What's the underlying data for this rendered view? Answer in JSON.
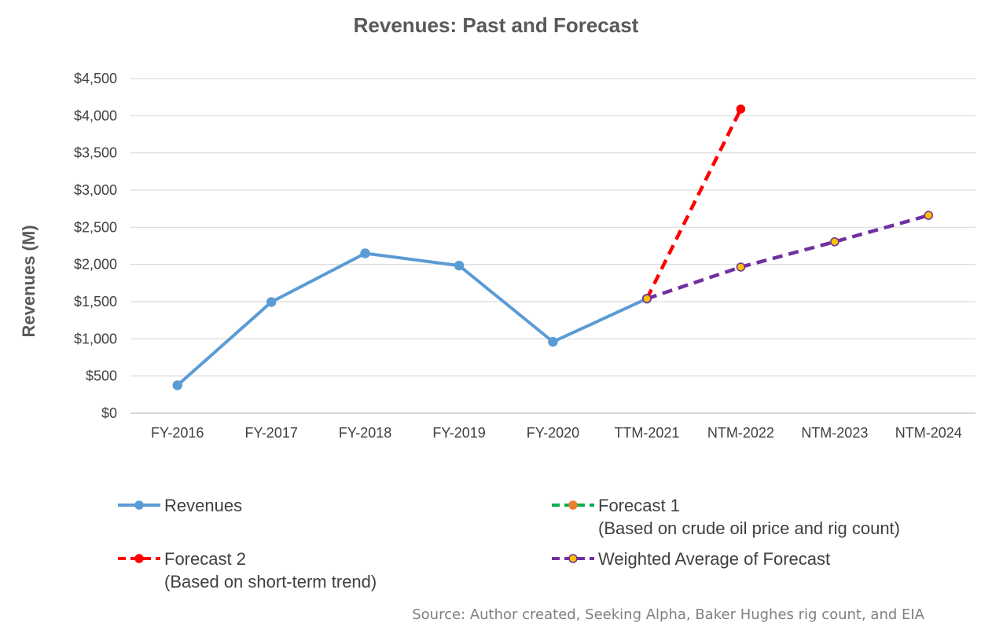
{
  "chart_data": {
    "type": "line",
    "title": "Revenues: Past and Forecast",
    "xlabel": "",
    "ylabel": "Revenues (M)",
    "categories": [
      "FY-2016",
      "FY-2017",
      "FY-2018",
      "FY-2019",
      "FY-2020",
      "TTM-2021",
      "NTM-2022",
      "NTM-2023",
      "NTM-2024"
    ],
    "ylim": [
      0,
      4500
    ],
    "yticks": [
      0,
      500,
      1000,
      1500,
      2000,
      2500,
      3000,
      3500,
      4000,
      4500
    ],
    "ytick_labels": [
      "$0",
      "$500",
      "$1,000",
      "$1,500",
      "$2,000",
      "$2,500",
      "$3,000",
      "$3,500",
      "$4,000",
      "$4,500"
    ],
    "grid": "horizontal",
    "legend_position": "bottom",
    "series": [
      {
        "name": "Revenues",
        "color": "#5b9bd5",
        "style": "solid",
        "marker_fill": "#5b9bd5",
        "marker_stroke": "#5b9bd5",
        "values": [
          375,
          1495,
          2150,
          1985,
          960,
          1540,
          null,
          null,
          null
        ]
      },
      {
        "name": "Forecast 1",
        "legend_note": "(Based on crude oil price and rig count)",
        "color": "#00b050",
        "style": "dashed",
        "marker_fill": "#ed7d31",
        "marker_stroke": "#ed7d31",
        "values": [
          null,
          null,
          null,
          null,
          null,
          null,
          null,
          null,
          null
        ]
      },
      {
        "name": "Forecast 2",
        "legend_note": "(Based on short-term trend)",
        "color": "#ff0000",
        "style": "dashed",
        "marker_fill": "#ff0000",
        "marker_stroke": "#ff0000",
        "values": [
          null,
          null,
          null,
          null,
          null,
          1540,
          4090,
          null,
          null
        ]
      },
      {
        "name": "Weighted Average of Forecast",
        "color": "#7030a0",
        "style": "dashed",
        "marker_fill": "#ffc000",
        "marker_stroke": "#7030a0",
        "values": [
          null,
          null,
          null,
          null,
          null,
          1540,
          1965,
          2305,
          2660
        ]
      }
    ],
    "annotation": "Source: Author created, Seeking Alpha, Baker Hughes rig count, and EIA"
  }
}
